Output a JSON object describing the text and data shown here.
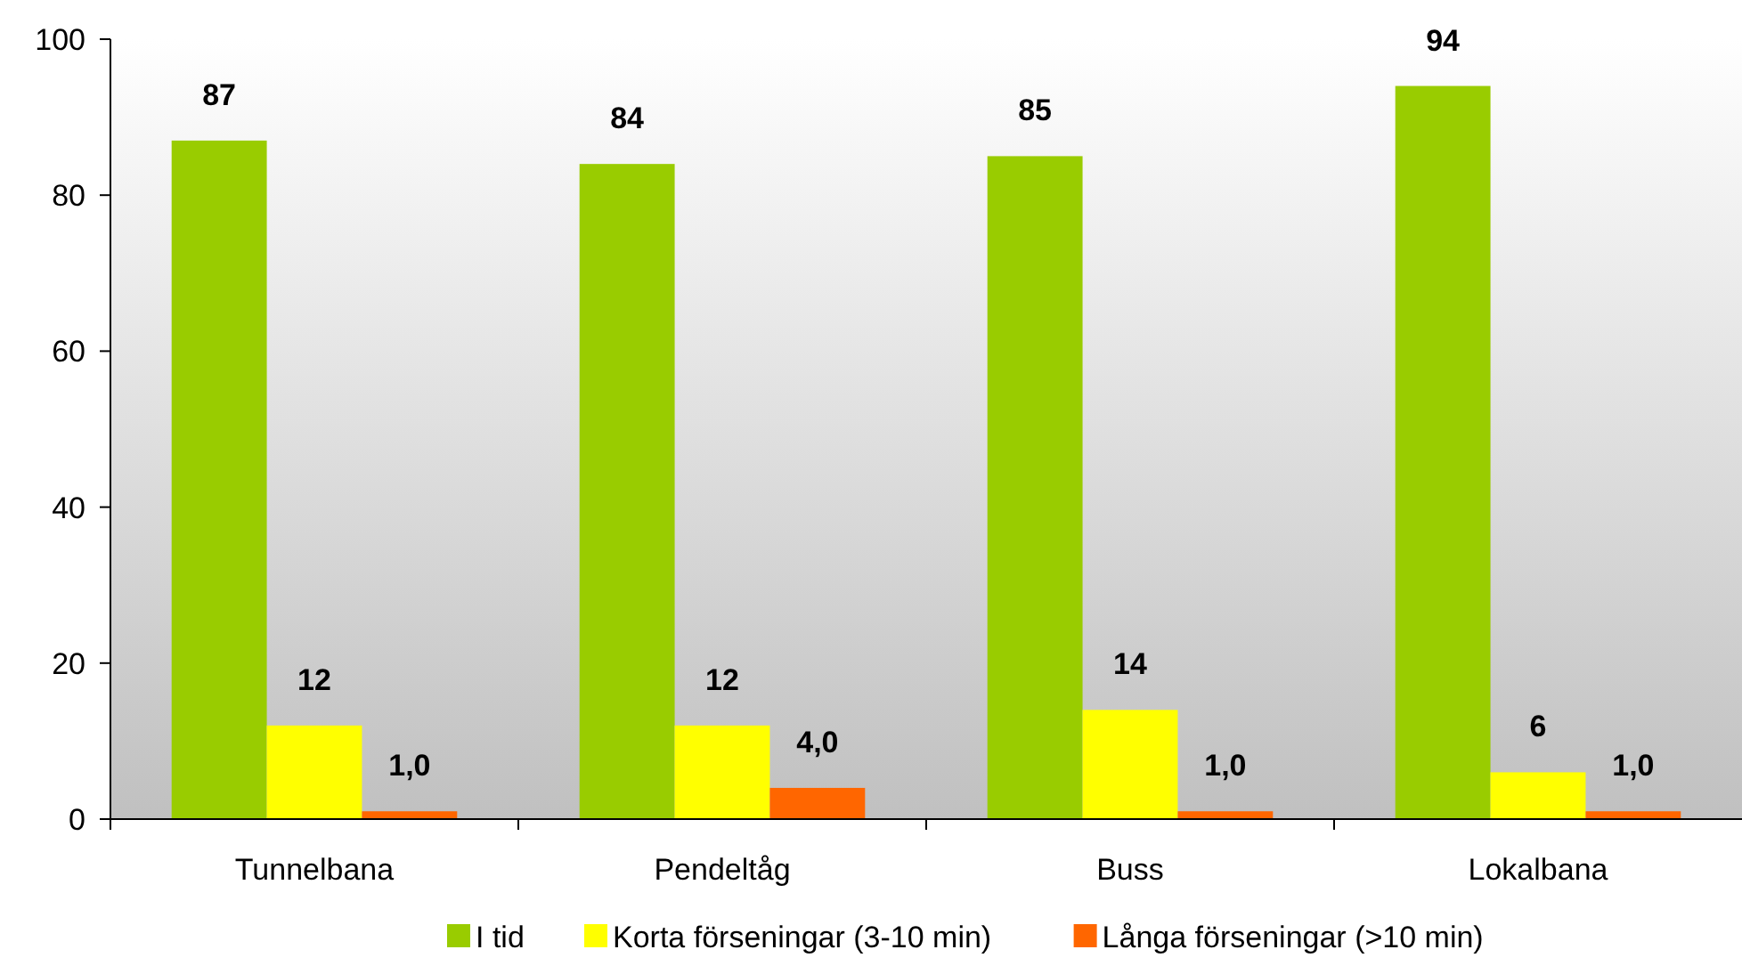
{
  "chart_data": {
    "type": "bar",
    "categories": [
      "Tunnelbana",
      "Pendeltåg",
      "Buss",
      "Lokalbana"
    ],
    "series": [
      {
        "name": "I tid",
        "color": "#99cc00",
        "values": [
          87,
          84,
          85,
          94
        ],
        "value_labels": [
          "87",
          "84",
          "85",
          "94"
        ]
      },
      {
        "name": "Korta förseningar (3-10 min)",
        "color": "#ffff00",
        "values": [
          12,
          12,
          14,
          6
        ],
        "value_labels": [
          "12",
          "12",
          "14",
          "6"
        ]
      },
      {
        "name": "Långa förseningar (>10 min)",
        "color": "#ff6600",
        "values": [
          1.0,
          4.0,
          1.0,
          1.0
        ],
        "value_labels": [
          "1,0",
          "4,0",
          "1,0",
          "1,0"
        ]
      }
    ],
    "ylim": [
      0,
      100
    ],
    "yticks": [
      0,
      20,
      40,
      60,
      80,
      100
    ],
    "grid": false,
    "legend": "bottom"
  }
}
